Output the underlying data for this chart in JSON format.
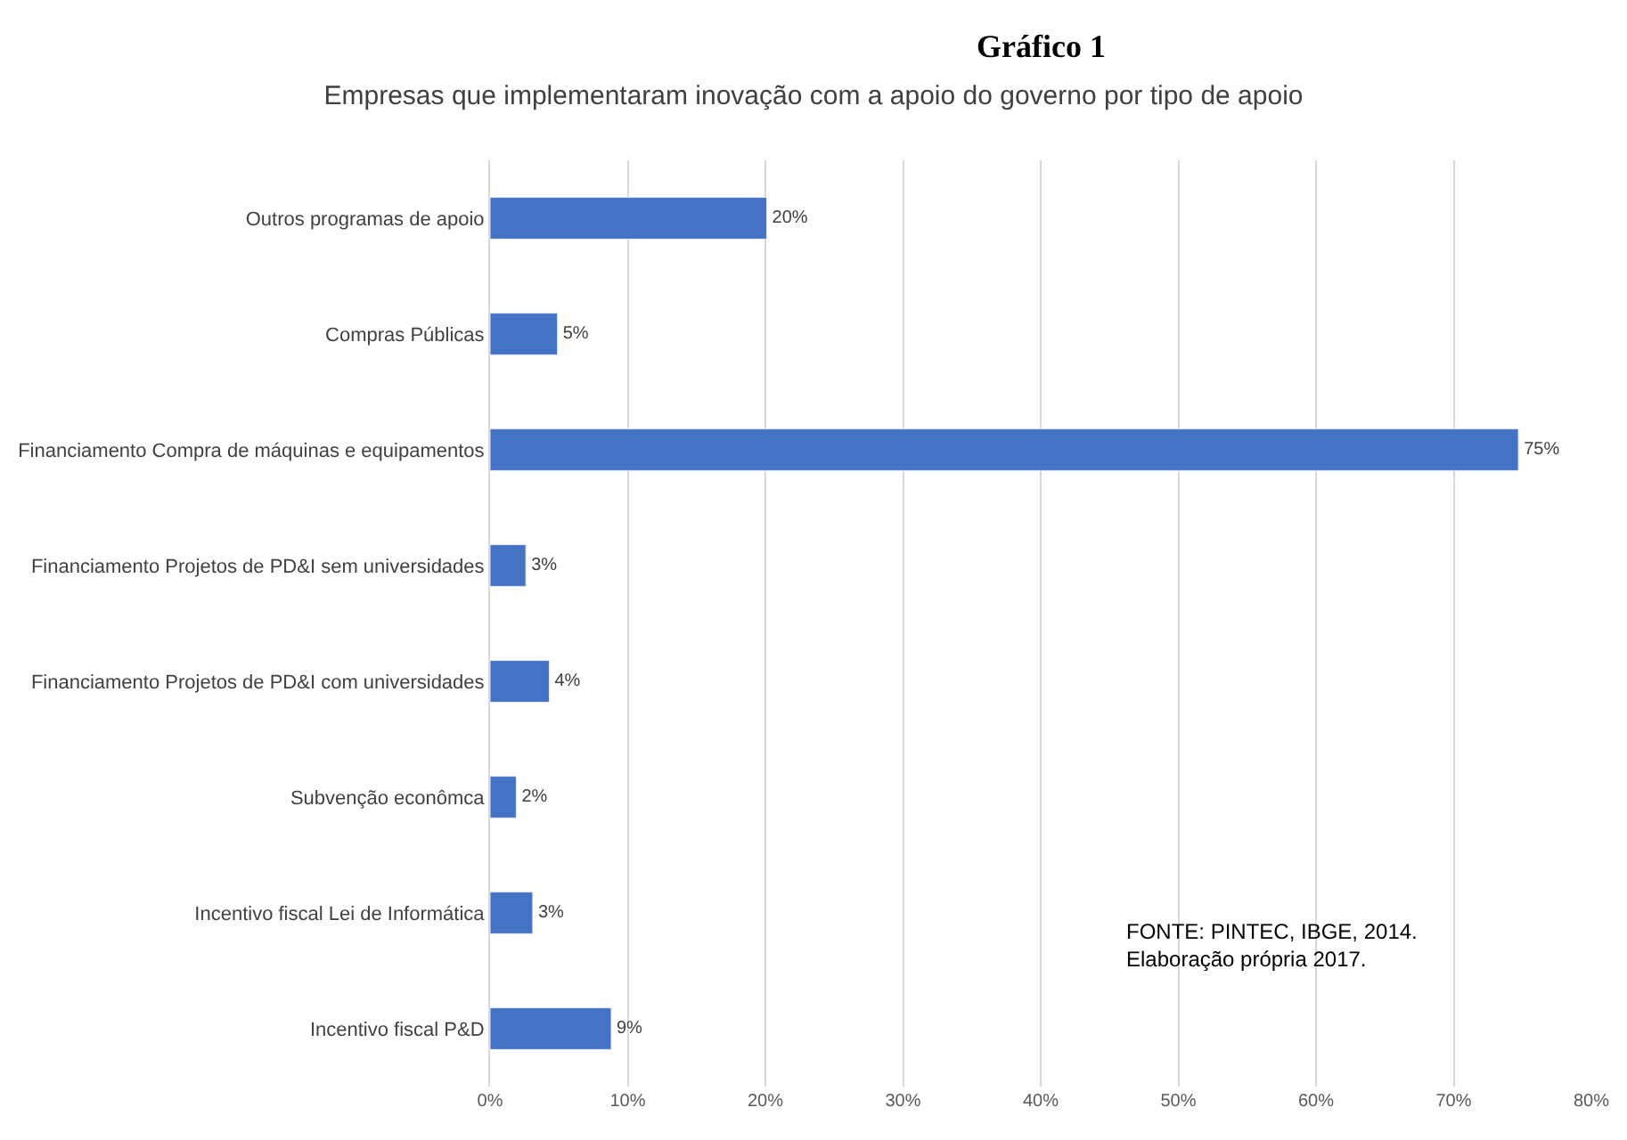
{
  "chart_data": {
    "type": "bar",
    "orientation": "horizontal",
    "title": "Empresas que implementaram inovação com a apoio do governo por tipo de apoio",
    "categories": [
      "Outros programas de apoio",
      "Compras Públicas",
      "Financiamento Compra de máquinas e equipamentos",
      "Financiamento Projetos de PD&I sem universidades",
      "Financiamento Projetos de PD&I com universidades",
      "Subvenção econômca",
      "Incentivo fiscal Lei de Informática",
      "Incentivo fiscal P&D"
    ],
    "values": [
      20.1,
      4.9,
      74.7,
      2.6,
      4.3,
      1.9,
      3.1,
      8.8
    ],
    "value_labels": [
      "20%",
      "5%",
      "75%",
      "3%",
      "4%",
      "2%",
      "3%",
      "9%"
    ],
    "color": "#4472c4",
    "xlim": [
      0,
      80
    ],
    "xticks": [
      {
        "value": 0,
        "label": "0%"
      },
      {
        "value": 10,
        "label": "10%"
      },
      {
        "value": 20,
        "label": "20%"
      },
      {
        "value": 30,
        "label": "30%"
      },
      {
        "value": 40,
        "label": "40%"
      },
      {
        "value": 50,
        "label": "50%"
      },
      {
        "value": 60,
        "label": "60%"
      },
      {
        "value": 70,
        "label": "70%"
      },
      {
        "value": 80,
        "label": "80%"
      }
    ],
    "grid": "x",
    "legend": false,
    "annotations": [
      "Gráfico 1",
      "FONTE: PINTEC, IBGE, 2014.\nElaboração própria 2017."
    ]
  }
}
